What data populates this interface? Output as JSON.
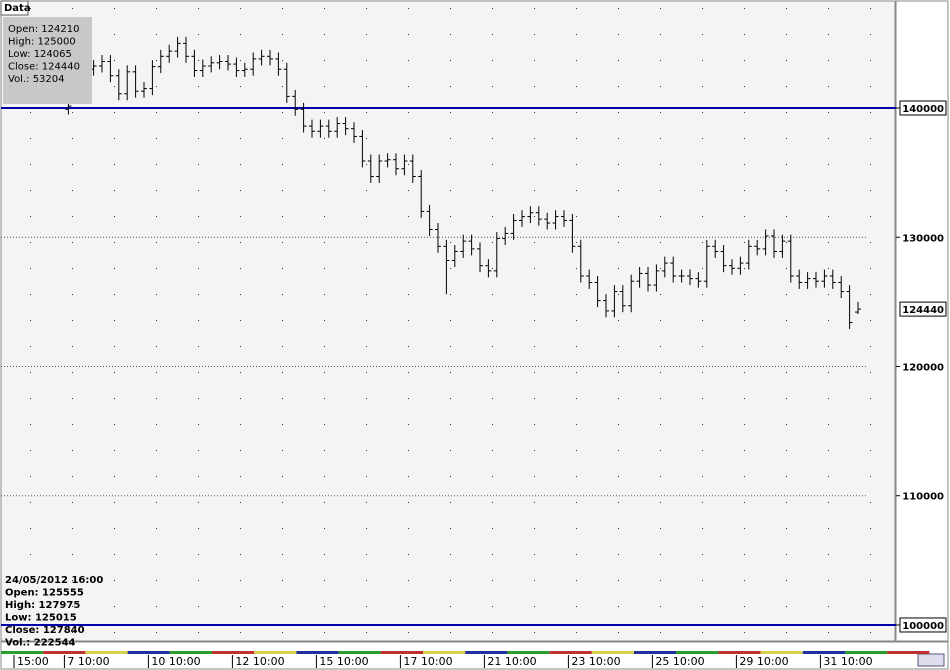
{
  "tab_label": "Data",
  "info_box": [
    "Open: 124210",
    "High: 125000",
    "Low: 124065",
    "Close: 124440",
    "Vol.: 53204"
  ],
  "cursor_box": [
    "24/05/2012 16:00",
    "Open: 125555",
    "High: 127975",
    "Low: 125015",
    "Close: 127840",
    "Vol.: 222544"
  ],
  "chart_data": {
    "type": "ohlc",
    "categories": [
      "15:00",
      null,
      null,
      null,
      null,
      null,
      "7 10:00",
      null,
      null,
      null,
      null,
      null,
      null,
      null,
      null,
      null,
      "10 10:00",
      null,
      null,
      null,
      null,
      null,
      null,
      null,
      null,
      null,
      "12 10:00",
      null,
      null,
      null,
      null,
      null,
      null,
      null,
      null,
      null,
      "15 10:00",
      null,
      null,
      null,
      null,
      null,
      null,
      null,
      null,
      null,
      "17 10:00",
      null,
      null,
      null,
      null,
      null,
      null,
      null,
      null,
      null,
      "21 10:00",
      null,
      null,
      null,
      null,
      null,
      null,
      null,
      null,
      null,
      "23 10:00",
      null,
      null,
      null,
      null,
      null,
      null,
      null,
      null,
      null,
      "25 10:00",
      null,
      null,
      null,
      null,
      null,
      null,
      null,
      null,
      null,
      "29 10:00",
      null,
      null,
      null,
      null,
      null,
      null,
      null,
      null,
      null,
      "31 10:00",
      null,
      null,
      null,
      null
    ],
    "open": [
      null,
      null,
      null,
      null,
      null,
      null,
      139900,
      null,
      null,
      143000,
      143250,
      143600,
      142500,
      141100,
      142800,
      141300,
      141500,
      143200,
      144000,
      144400,
      145000,
      144000,
      142900,
      143250,
      143500,
      143600,
      143400,
      142900,
      143000,
      143800,
      144000,
      143800,
      143000,
      140900,
      139900,
      138600,
      138200,
      138600,
      138200,
      138800,
      138400,
      137800,
      135900,
      134700,
      135900,
      136000,
      135300,
      135900,
      134700,
      132000,
      130600,
      129300,
      128200,
      128900,
      129700,
      129100,
      127800,
      127400,
      129900,
      130300,
      131300,
      131600,
      131900,
      131400,
      131100,
      131600,
      131300,
      129300,
      127000,
      126500,
      125100,
      124300,
      125800,
      124700,
      126600,
      127200,
      126300,
      127400,
      128000,
      127000,
      127000,
      126800,
      126600,
      129300,
      128900,
      127800,
      127600,
      128000,
      129300,
      129100,
      130100,
      128900,
      129700,
      127000,
      126500,
      126800,
      126600,
      127000,
      126500,
      125800,
      124210
    ],
    "high": [
      null,
      null,
      null,
      null,
      null,
      null,
      140600,
      null,
      null,
      143700,
      144100,
      144100,
      143000,
      143300,
      143300,
      142000,
      143700,
      144500,
      144900,
      145500,
      145500,
      144500,
      143750,
      144000,
      144100,
      144100,
      143900,
      143500,
      144300,
      144500,
      144500,
      144300,
      143500,
      141400,
      140400,
      139100,
      139100,
      139100,
      139300,
      139300,
      138900,
      138300,
      136400,
      136400,
      136500,
      136500,
      136400,
      136400,
      135200,
      132500,
      131100,
      129800,
      129400,
      130200,
      130200,
      129600,
      128300,
      130400,
      130800,
      131800,
      132100,
      132400,
      132400,
      131900,
      132100,
      132100,
      131800,
      129800,
      127500,
      127000,
      125600,
      126300,
      126300,
      127100,
      127700,
      127700,
      127900,
      128500,
      128500,
      127500,
      127500,
      127300,
      129800,
      129800,
      129400,
      128300,
      128500,
      129800,
      129800,
      130600,
      130600,
      130200,
      130200,
      127500,
      127300,
      127300,
      127500,
      127500,
      127000,
      126300,
      125000
    ],
    "low": [
      null,
      null,
      null,
      null,
      null,
      null,
      139500,
      null,
      null,
      142500,
      142750,
      142000,
      140600,
      140600,
      140800,
      140800,
      141000,
      142700,
      143500,
      143900,
      143500,
      142400,
      142400,
      142750,
      143000,
      142900,
      142400,
      142400,
      142500,
      143300,
      143300,
      142500,
      140400,
      139400,
      138100,
      137700,
      137700,
      137700,
      137700,
      137900,
      137300,
      135400,
      134200,
      134200,
      135400,
      134800,
      134800,
      134200,
      131500,
      130100,
      128800,
      125600,
      127700,
      128400,
      128600,
      127300,
      126900,
      126900,
      129400,
      129800,
      130800,
      131100,
      130900,
      130600,
      130600,
      130800,
      128800,
      126500,
      126000,
      124600,
      123800,
      123800,
      124200,
      124200,
      126100,
      125800,
      125800,
      126900,
      126500,
      126500,
      126300,
      126100,
      126100,
      128400,
      127300,
      127100,
      127100,
      127500,
      128600,
      128600,
      128400,
      128400,
      126500,
      126000,
      126000,
      126100,
      126100,
      126000,
      125300,
      122900,
      124065
    ],
    "close": [
      null,
      null,
      null,
      null,
      null,
      null,
      140150,
      null,
      null,
      143250,
      143600,
      142500,
      141100,
      142800,
      141300,
      141500,
      143200,
      144000,
      144400,
      145000,
      144000,
      142900,
      143250,
      143500,
      143600,
      143400,
      142900,
      143000,
      143800,
      144000,
      143800,
      143000,
      140900,
      139900,
      138600,
      138200,
      138600,
      138200,
      138800,
      138400,
      137800,
      135900,
      134700,
      135900,
      136000,
      135300,
      135900,
      134700,
      132000,
      130600,
      129300,
      128200,
      128900,
      129700,
      129100,
      127800,
      127400,
      129900,
      130300,
      131300,
      131600,
      131900,
      131400,
      131100,
      131600,
      131300,
      129300,
      127000,
      126500,
      125100,
      124300,
      125800,
      124700,
      126600,
      127200,
      126300,
      127400,
      128000,
      127000,
      127000,
      126800,
      126600,
      129300,
      128900,
      127800,
      127600,
      128000,
      129300,
      129100,
      130100,
      128900,
      129700,
      127000,
      126500,
      126800,
      126600,
      127000,
      126500,
      125800,
      123400,
      124440
    ],
    "color": "#000000",
    "ylim": [
      98760,
      148280
    ],
    "yticks": [
      100000,
      110000,
      120000,
      130000,
      140000
    ],
    "hlines": [
      140000,
      100000
    ],
    "hline_color": "#0000aa",
    "grid": true
  }
}
